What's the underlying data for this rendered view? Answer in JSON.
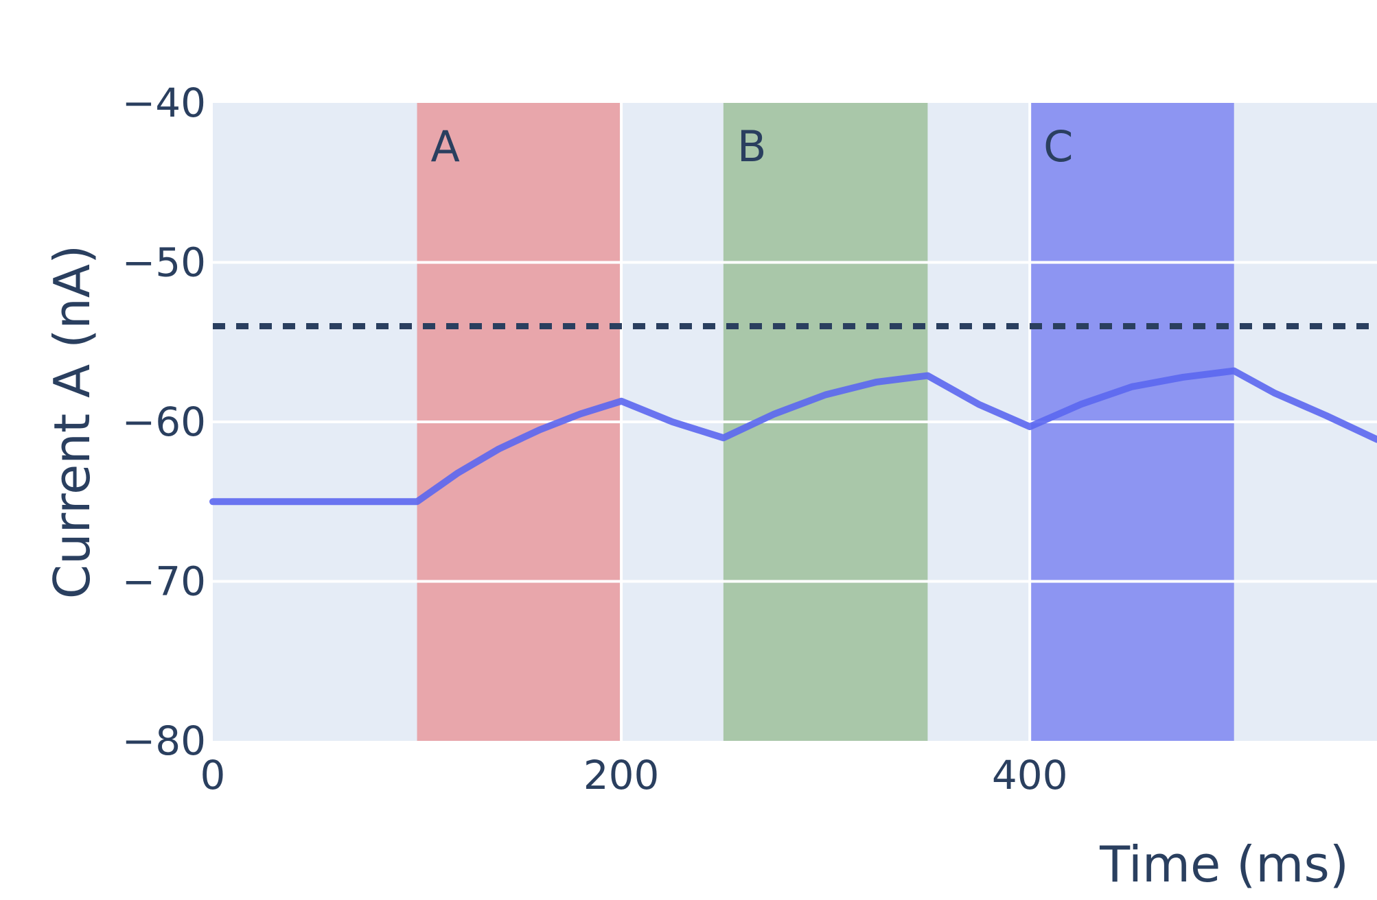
{
  "chart_data": {
    "type": "line",
    "title": "",
    "xlabel": "Time (ms)",
    "ylabel": "Current A (nA)",
    "xlim": [
      0,
      570
    ],
    "ylim": [
      -80,
      -40
    ],
    "x_ticks": [
      {
        "value": 0,
        "label": "0"
      },
      {
        "value": 200,
        "label": "200"
      },
      {
        "value": 400,
        "label": "400"
      }
    ],
    "y_ticks": [
      {
        "value": -40,
        "label": "−40"
      },
      {
        "value": -50,
        "label": "−50"
      },
      {
        "value": -60,
        "label": "−60"
      },
      {
        "value": -70,
        "label": "−70"
      },
      {
        "value": -80,
        "label": "−80"
      }
    ],
    "grid": true,
    "threshold": {
      "y": -54,
      "style": "dotted",
      "color": "#2a3f5f"
    },
    "bands": [
      {
        "label": "A",
        "x0": 100,
        "x1": 200,
        "color": "#e8a6ab"
      },
      {
        "label": "B",
        "x0": 250,
        "x1": 350,
        "color": "#a9c7a9"
      },
      {
        "label": "C",
        "x0": 400,
        "x1": 500,
        "color": "#8d95f2"
      }
    ],
    "series": [
      {
        "color": "#5b67f0",
        "x": [
          0,
          100,
          120,
          140,
          160,
          180,
          200,
          225,
          250,
          275,
          300,
          325,
          350,
          375,
          400,
          425,
          450,
          475,
          500,
          520,
          545,
          570
        ],
        "y": [
          -65,
          -65,
          -63.2,
          -61.7,
          -60.5,
          -59.5,
          -58.7,
          -60.0,
          -61.0,
          -59.5,
          -58.3,
          -57.5,
          -57.1,
          -58.9,
          -60.3,
          -58.9,
          -57.8,
          -57.2,
          -56.8,
          -58.2,
          -59.6,
          -61.1
        ]
      }
    ]
  }
}
